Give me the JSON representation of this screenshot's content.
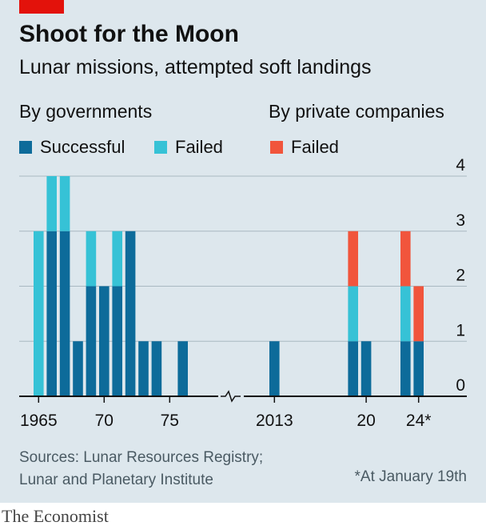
{
  "header": {
    "title": "Shoot for the Moon",
    "subtitle": "Lunar missions, attempted soft landings"
  },
  "legend": {
    "government_group": "By governments",
    "private_group": "By private companies",
    "items": [
      {
        "label": "Successful",
        "color": "#0d6b9a"
      },
      {
        "label": "Failed",
        "color": "#36c2d6"
      },
      {
        "label": "Failed",
        "color": "#f1553c"
      }
    ]
  },
  "chart_data": {
    "type": "bar",
    "stacked": true,
    "title": "Shoot for the Moon",
    "subtitle": "Lunar missions, attempted soft landings",
    "ylim": [
      0,
      4
    ],
    "yticks": [
      0,
      1,
      2,
      3,
      4
    ],
    "y_axis_position": "right",
    "grid": true,
    "axis_break": "between 1976 and 2013",
    "x_tick_labels": [
      "1965",
      "70",
      "75",
      "2013",
      "20",
      "24*"
    ],
    "panels": [
      {
        "name": "By governments",
        "years": [
          1965,
          1966,
          1967,
          1968,
          1969,
          1970,
          1971,
          1972,
          1973,
          1974,
          1975,
          1976
        ],
        "series": [
          {
            "name": "Successful",
            "color": "#0d6b9a",
            "values": [
              0,
              3,
              3,
              1,
              2,
              2,
              2,
              3,
              1,
              1,
              0,
              1
            ]
          },
          {
            "name": "Failed",
            "color": "#36c2d6",
            "values": [
              3,
              1,
              1,
              0,
              1,
              0,
              1,
              0,
              0,
              0,
              0,
              0
            ]
          }
        ]
      },
      {
        "name": "By private companies",
        "years": [
          2013,
          2014,
          2015,
          2016,
          2017,
          2018,
          2019,
          2020,
          2021,
          2022,
          2023,
          2024
        ],
        "series": [
          {
            "name": "Successful (government)",
            "color": "#0d6b9a",
            "values": [
              1,
              0,
              0,
              0,
              0,
              0,
              1,
              1,
              0,
              0,
              1,
              1
            ]
          },
          {
            "name": "Failed (government)",
            "color": "#36c2d6",
            "values": [
              0,
              0,
              0,
              0,
              0,
              0,
              1,
              0,
              0,
              0,
              1,
              0
            ]
          },
          {
            "name": "Failed (private)",
            "color": "#f1553c",
            "values": [
              0,
              0,
              0,
              0,
              0,
              0,
              1,
              0,
              0,
              0,
              1,
              1
            ]
          }
        ]
      }
    ]
  },
  "footer": {
    "source_line1": "Sources: Lunar Resources Registry;",
    "source_line2": "Lunar and Planetary Institute",
    "footnote": "*At January 19th",
    "brand": "The Economist"
  }
}
